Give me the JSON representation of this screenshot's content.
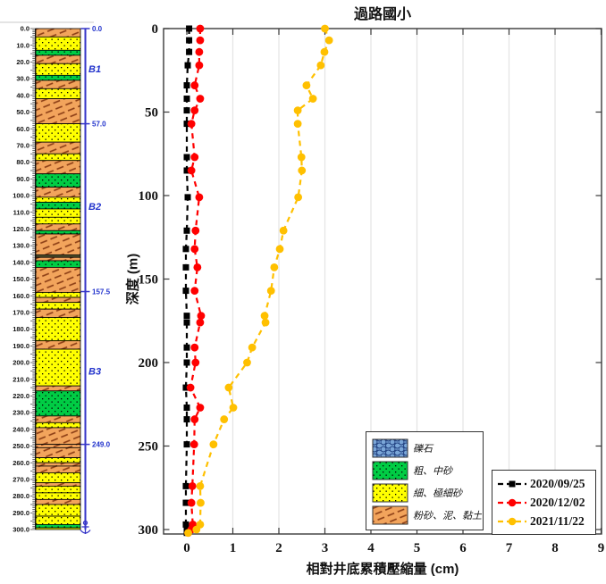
{
  "title": "過路國小",
  "axes": {
    "x_label": "相對井底累積壓縮量  (cm)",
    "y_label": "深度 (m)",
    "x_range": [
      -0.5,
      9
    ],
    "y_range": [
      0,
      302.5
    ],
    "x_tick_labels": [
      "0",
      "1",
      "2",
      "3",
      "4",
      "5",
      "6",
      "7",
      "8",
      "9"
    ],
    "y_tick_labels": [
      "0",
      "50",
      "100",
      "150",
      "200",
      "250",
      "300"
    ],
    "y_tick_values": [
      0,
      50,
      100,
      150,
      200,
      250,
      300
    ],
    "grid": "vertical-only"
  },
  "chart_data": {
    "type": "line",
    "orientation": "depth-profile",
    "title": "過路國小",
    "xlabel": "相對井底累積壓縮量 (cm)",
    "ylabel": "深度 (m)",
    "legend_position": "bottom-right",
    "depths": [
      0,
      7,
      14,
      22,
      34,
      42,
      49,
      57,
      77,
      85,
      101,
      121,
      132,
      143,
      157,
      172,
      176,
      191,
      200,
      215,
      227,
      234,
      249,
      274,
      284,
      297,
      300,
      302
    ],
    "series": [
      {
        "name": "2020/09/25",
        "color": "#000000",
        "marker": "square",
        "values": [
          0.05,
          0.05,
          0.05,
          0.02,
          0,
          0,
          0,
          0,
          0,
          0,
          0.02,
          0,
          -0.02,
          -0.02,
          -0.02,
          0,
          0,
          0,
          0,
          -0.02,
          0,
          0,
          0,
          -0.02,
          -0.02,
          -0.02,
          0,
          0
        ]
      },
      {
        "name": "2020/12/02",
        "color": "#ff0000",
        "marker": "circle",
        "values": [
          0.29,
          0.29,
          0.27,
          0.27,
          0.17,
          0.29,
          0.17,
          0.1,
          0.17,
          0.1,
          0.27,
          0.19,
          0.17,
          0.23,
          0.17,
          0.31,
          0.29,
          0.17,
          0.19,
          0.08,
          0.29,
          0.17,
          0.16,
          0.12,
          0.1,
          0.13,
          0.1,
          0.03
        ]
      },
      {
        "name": "2021/11/22",
        "color": "#ffc000",
        "marker": "circle",
        "values": [
          3.0,
          3.09,
          2.99,
          2.91,
          2.6,
          2.74,
          2.41,
          2.41,
          2.49,
          2.5,
          2.42,
          2.1,
          2.02,
          1.9,
          1.83,
          1.69,
          1.71,
          1.42,
          1.31,
          0.91,
          1.01,
          0.81,
          0.58,
          0.29,
          0.3,
          0.29,
          0.21,
          0.03
        ]
      }
    ]
  },
  "lithology": {
    "depth_labels": [
      "0.0",
      "10.0",
      "20.0",
      "30.0",
      "40.0",
      "50.0",
      "60.0",
      "70.0",
      "80.0",
      "90.0",
      "100.0",
      "110.0",
      "120.0",
      "130.0",
      "140.0",
      "150.0",
      "160.0",
      "170.0",
      "180.0",
      "190.0",
      "200.0",
      "210.0",
      "220.0",
      "230.0",
      "240.0",
      "250.0",
      "260.0",
      "270.0",
      "280.0",
      "290.0",
      "300.0"
    ],
    "layers": [
      [
        0,
        5,
        "clay"
      ],
      [
        5,
        13,
        "fine"
      ],
      [
        13,
        16,
        "med"
      ],
      [
        16,
        21,
        "clay"
      ],
      [
        21,
        28,
        "fine"
      ],
      [
        28,
        31,
        "med"
      ],
      [
        31,
        36,
        "clay"
      ],
      [
        36,
        42,
        "fine"
      ],
      [
        42,
        57,
        "clay"
      ],
      [
        57,
        68,
        "fine"
      ],
      [
        68,
        75,
        "clay"
      ],
      [
        75,
        79,
        "fine"
      ],
      [
        79,
        87,
        "clay"
      ],
      [
        87,
        95,
        "med"
      ],
      [
        95,
        101,
        "clay"
      ],
      [
        101,
        104,
        "fine"
      ],
      [
        104,
        108,
        "med"
      ],
      [
        108,
        113,
        "fine"
      ],
      [
        113,
        117,
        "fine"
      ],
      [
        117,
        121,
        "clay"
      ],
      [
        121,
        123,
        "med"
      ],
      [
        123,
        135.5,
        "clay"
      ],
      [
        135.5,
        137,
        "dark"
      ],
      [
        137,
        139,
        "clay"
      ],
      [
        139,
        143,
        "med"
      ],
      [
        143,
        158,
        "clay"
      ],
      [
        158,
        161,
        "fine"
      ],
      [
        161,
        164,
        "clay"
      ],
      [
        164,
        168,
        "fine"
      ],
      [
        168,
        173,
        "clay"
      ],
      [
        173,
        187,
        "fine"
      ],
      [
        187,
        192,
        "clay"
      ],
      [
        192,
        214,
        "fine"
      ],
      [
        214,
        217,
        "clay"
      ],
      [
        217,
        232,
        "med"
      ],
      [
        232,
        236,
        "clay"
      ],
      [
        236,
        239,
        "fine"
      ],
      [
        239,
        249,
        "clay"
      ],
      [
        249,
        251,
        "clay"
      ],
      [
        251,
        257,
        "clay"
      ],
      [
        257,
        260,
        "fine"
      ],
      [
        260,
        262,
        "clay"
      ],
      [
        262,
        266,
        "clay"
      ],
      [
        266,
        272,
        "fine"
      ],
      [
        272,
        274,
        "clay"
      ],
      [
        274,
        278,
        "fine"
      ],
      [
        278,
        282,
        "fine"
      ],
      [
        282,
        285,
        "clay"
      ],
      [
        285,
        292,
        "fine"
      ],
      [
        292,
        297,
        "fine"
      ],
      [
        297,
        299,
        "med"
      ],
      [
        299,
        300,
        "fine"
      ]
    ],
    "bracket_marks": [
      {
        "depth": 0,
        "label": "0.0"
      },
      {
        "depth": 57,
        "label": "57.0"
      },
      {
        "depth": 157.5,
        "label": "157.5"
      },
      {
        "depth": 249,
        "label": "249.0"
      }
    ],
    "zone_labels": [
      {
        "depth": 24,
        "label": "B1"
      },
      {
        "depth": 106.5,
        "label": "B2"
      },
      {
        "depth": 205,
        "label": "B3"
      }
    ]
  },
  "litho_legend": {
    "items": [
      {
        "key": "gravel",
        "label": "礫石"
      },
      {
        "key": "med",
        "label": "粗、中砂"
      },
      {
        "key": "fine",
        "label": "細、極細砂"
      },
      {
        "key": "clay",
        "label": "粉砂、泥、黏土"
      }
    ]
  },
  "colors": {
    "series_black": "#000000",
    "series_red": "#ff0000",
    "series_yellow": "#ffc000",
    "fine_sand": "#ffff00",
    "medium_sand": "#00cc44",
    "clay_silt": "#f2a45c",
    "gravel_blue": "#7aa6d8",
    "dark_layer": "#56562f",
    "bracket_blue": "#3535c8",
    "axis": "#3a3a3a",
    "gridline": "#e4e4e4"
  }
}
